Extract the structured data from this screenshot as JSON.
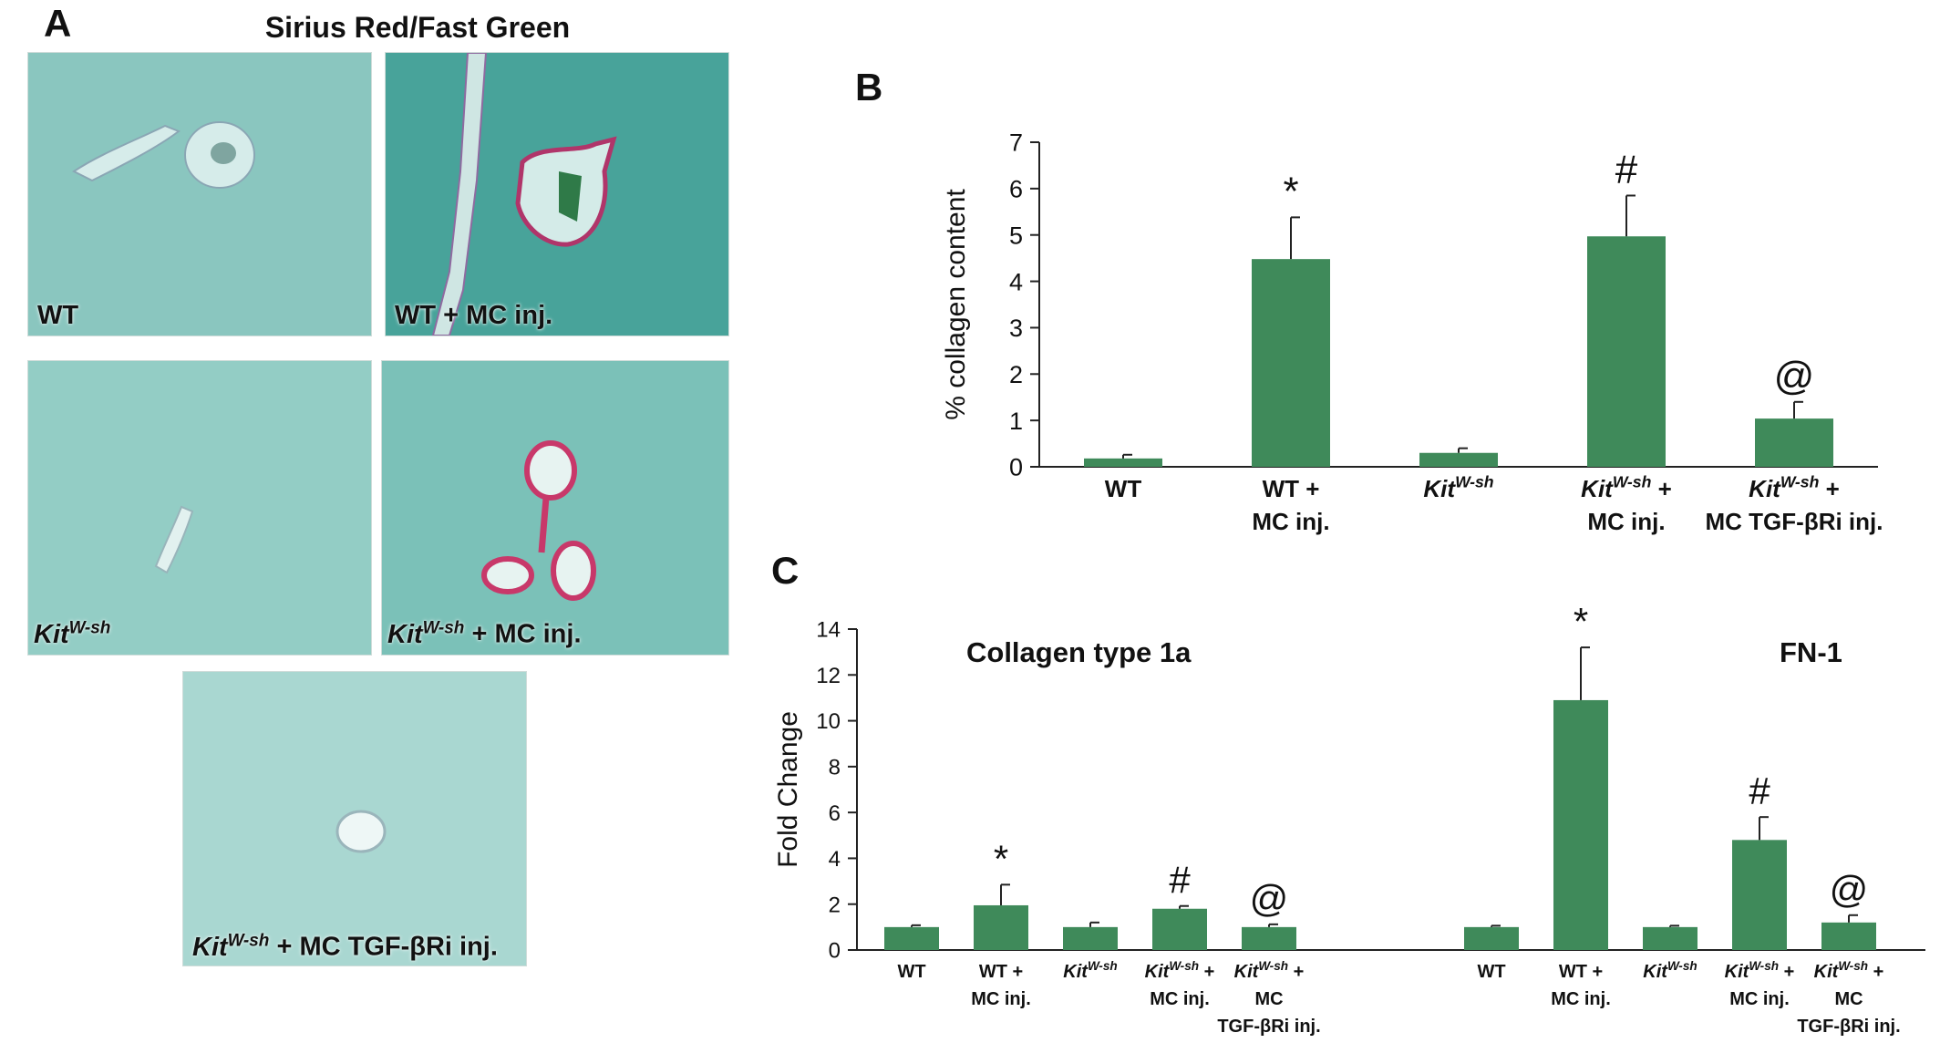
{
  "panel_a": {
    "letter": "A",
    "title": "Sirius Red/Fast Green",
    "images": [
      {
        "label_main": "WT",
        "label_sup": "",
        "label_rest": ""
      },
      {
        "label_main": "WT + MC inj.",
        "label_sup": "",
        "label_rest": ""
      },
      {
        "label_main": "Kit",
        "label_sup": "W-sh",
        "label_rest": ""
      },
      {
        "label_main": "Kit",
        "label_sup": "W-sh",
        "label_rest": " + MC inj."
      },
      {
        "label_main": "Kit",
        "label_sup": "W-sh",
        "label_rest": " + MC TGF-βRi inj."
      }
    ]
  },
  "chart_data": [
    {
      "panel": "B",
      "type": "bar",
      "ylabel": "% collagen content",
      "ylim": [
        0,
        7
      ],
      "yticks": [
        0,
        1,
        2,
        3,
        4,
        5,
        6,
        7
      ],
      "bar_color": "#3f8a5a",
      "categories": [
        {
          "lines": [
            "WT"
          ]
        },
        {
          "lines": [
            "WT +",
            "MC inj."
          ]
        },
        {
          "lines": [
            "Kit"
          ],
          "sup": "W-sh"
        },
        {
          "lines": [
            "Kit",
            "MC inj."
          ],
          "sup": "W-sh",
          "after": " +"
        },
        {
          "lines": [
            "Kit",
            "MC TGF-βRi inj."
          ],
          "sup": "W-sh",
          "after": " +"
        }
      ],
      "values": [
        0.18,
        4.48,
        0.3,
        4.97,
        1.04
      ],
      "errors": [
        0.08,
        0.9,
        0.1,
        0.88,
        0.36
      ],
      "annotations": [
        "",
        "*",
        "",
        "#",
        "@"
      ]
    },
    {
      "panel": "C",
      "type": "bar",
      "ylabel": "Fold Change",
      "ylim": [
        0,
        14
      ],
      "yticks": [
        0,
        2,
        4,
        6,
        8,
        10,
        12,
        14
      ],
      "bar_color": "#3f8a5a",
      "groups": [
        {
          "title": "Collagen type 1a",
          "values": [
            1.0,
            1.95,
            1.0,
            1.8,
            1.0
          ],
          "errors": [
            0.08,
            0.9,
            0.2,
            0.12,
            0.12
          ],
          "annotations": [
            "",
            "*",
            "",
            "#",
            "@"
          ]
        },
        {
          "title": "FN-1",
          "values": [
            1.0,
            10.9,
            1.0,
            4.8,
            1.2
          ],
          "errors": [
            0.06,
            2.3,
            0.06,
            1.0,
            0.32
          ],
          "annotations": [
            "",
            "*",
            "",
            "#",
            "@"
          ]
        }
      ],
      "categories": [
        {
          "lines": [
            "WT"
          ]
        },
        {
          "lines": [
            "WT +",
            "MC inj."
          ]
        },
        {
          "lines": [
            "Kit"
          ],
          "sup": "W-sh"
        },
        {
          "lines": [
            "Kit",
            "MC inj."
          ],
          "sup": "W-sh",
          "after": " +"
        },
        {
          "lines": [
            "Kit",
            "MC",
            "TGF-βRi inj."
          ],
          "sup": "W-sh",
          "after": " +"
        }
      ]
    }
  ]
}
